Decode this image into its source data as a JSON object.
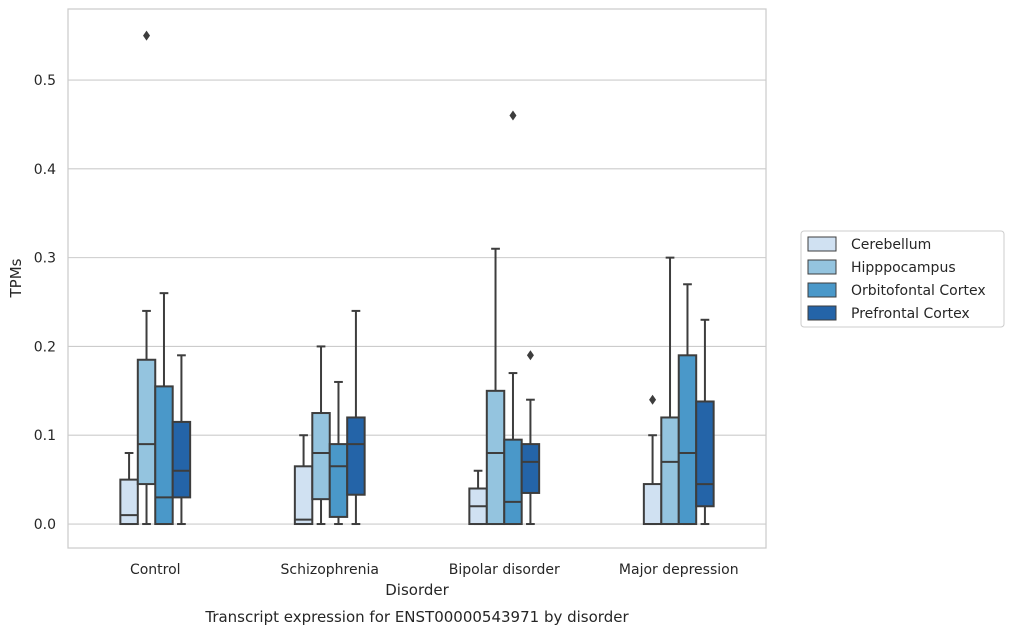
{
  "chart_data": {
    "type": "box",
    "caption": "Transcript expression for ENST00000543971 by disorder",
    "xlabel": "Disorder",
    "ylabel": "TPMs",
    "ylim": [
      -0.027,
      0.58
    ],
    "yticks": [
      0.0,
      0.1,
      0.2,
      0.3,
      0.4,
      0.5
    ],
    "ytick_labels": [
      "0.0",
      "0.1",
      "0.2",
      "0.3",
      "0.4",
      "0.5"
    ],
    "grid": true,
    "legend_position": "right",
    "categories": [
      "Control",
      "Schizophrenia",
      "Bipolar disorder",
      "Major depression"
    ],
    "series": [
      {
        "name": "Cerebellum",
        "color": "#d0e1f2",
        "boxes": [
          {
            "whisker_low": 0.0,
            "q1": 0.0,
            "median": 0.01,
            "q3": 0.05,
            "whisker_high": 0.08,
            "outliers": []
          },
          {
            "whisker_low": 0.0,
            "q1": 0.0,
            "median": 0.005,
            "q3": 0.065,
            "whisker_high": 0.1,
            "outliers": []
          },
          {
            "whisker_low": 0.0,
            "q1": 0.0,
            "median": 0.02,
            "q3": 0.04,
            "whisker_high": 0.06,
            "outliers": []
          },
          {
            "whisker_low": 0.0,
            "q1": 0.0,
            "median": 0.0,
            "q3": 0.045,
            "whisker_high": 0.1,
            "outliers": [
              0.14
            ]
          }
        ]
      },
      {
        "name": "Hipppocampus",
        "color": "#94c4df",
        "boxes": [
          {
            "whisker_low": 0.0,
            "q1": 0.045,
            "median": 0.09,
            "q3": 0.185,
            "whisker_high": 0.24,
            "outliers": [
              0.55
            ]
          },
          {
            "whisker_low": 0.0,
            "q1": 0.028,
            "median": 0.08,
            "q3": 0.125,
            "whisker_high": 0.2,
            "outliers": []
          },
          {
            "whisker_low": 0.0,
            "q1": 0.0,
            "median": 0.08,
            "q3": 0.15,
            "whisker_high": 0.31,
            "outliers": []
          },
          {
            "whisker_low": 0.0,
            "q1": 0.0,
            "median": 0.07,
            "q3": 0.12,
            "whisker_high": 0.3,
            "outliers": []
          }
        ]
      },
      {
        "name": "Orbitofontal Cortex",
        "color": "#4a98c9",
        "boxes": [
          {
            "whisker_low": 0.0,
            "q1": 0.0,
            "median": 0.03,
            "q3": 0.155,
            "whisker_high": 0.26,
            "outliers": []
          },
          {
            "whisker_low": 0.0,
            "q1": 0.008,
            "median": 0.065,
            "q3": 0.09,
            "whisker_high": 0.16,
            "outliers": []
          },
          {
            "whisker_low": 0.0,
            "q1": 0.0,
            "median": 0.025,
            "q3": 0.095,
            "whisker_high": 0.17,
            "outliers": [
              0.46
            ]
          },
          {
            "whisker_low": 0.0,
            "q1": 0.0,
            "median": 0.08,
            "q3": 0.19,
            "whisker_high": 0.27,
            "outliers": []
          }
        ]
      },
      {
        "name": "Prefrontal Cortex",
        "color": "#2464a8",
        "boxes": [
          {
            "whisker_low": 0.0,
            "q1": 0.03,
            "median": 0.06,
            "q3": 0.115,
            "whisker_high": 0.19,
            "outliers": []
          },
          {
            "whisker_low": 0.0,
            "q1": 0.033,
            "median": 0.09,
            "q3": 0.12,
            "whisker_high": 0.24,
            "outliers": []
          },
          {
            "whisker_low": 0.0,
            "q1": 0.035,
            "median": 0.07,
            "q3": 0.09,
            "whisker_high": 0.14,
            "outliers": [
              0.19
            ]
          },
          {
            "whisker_low": 0.0,
            "q1": 0.02,
            "median": 0.045,
            "q3": 0.138,
            "whisker_high": 0.23,
            "outliers": []
          }
        ]
      }
    ]
  }
}
